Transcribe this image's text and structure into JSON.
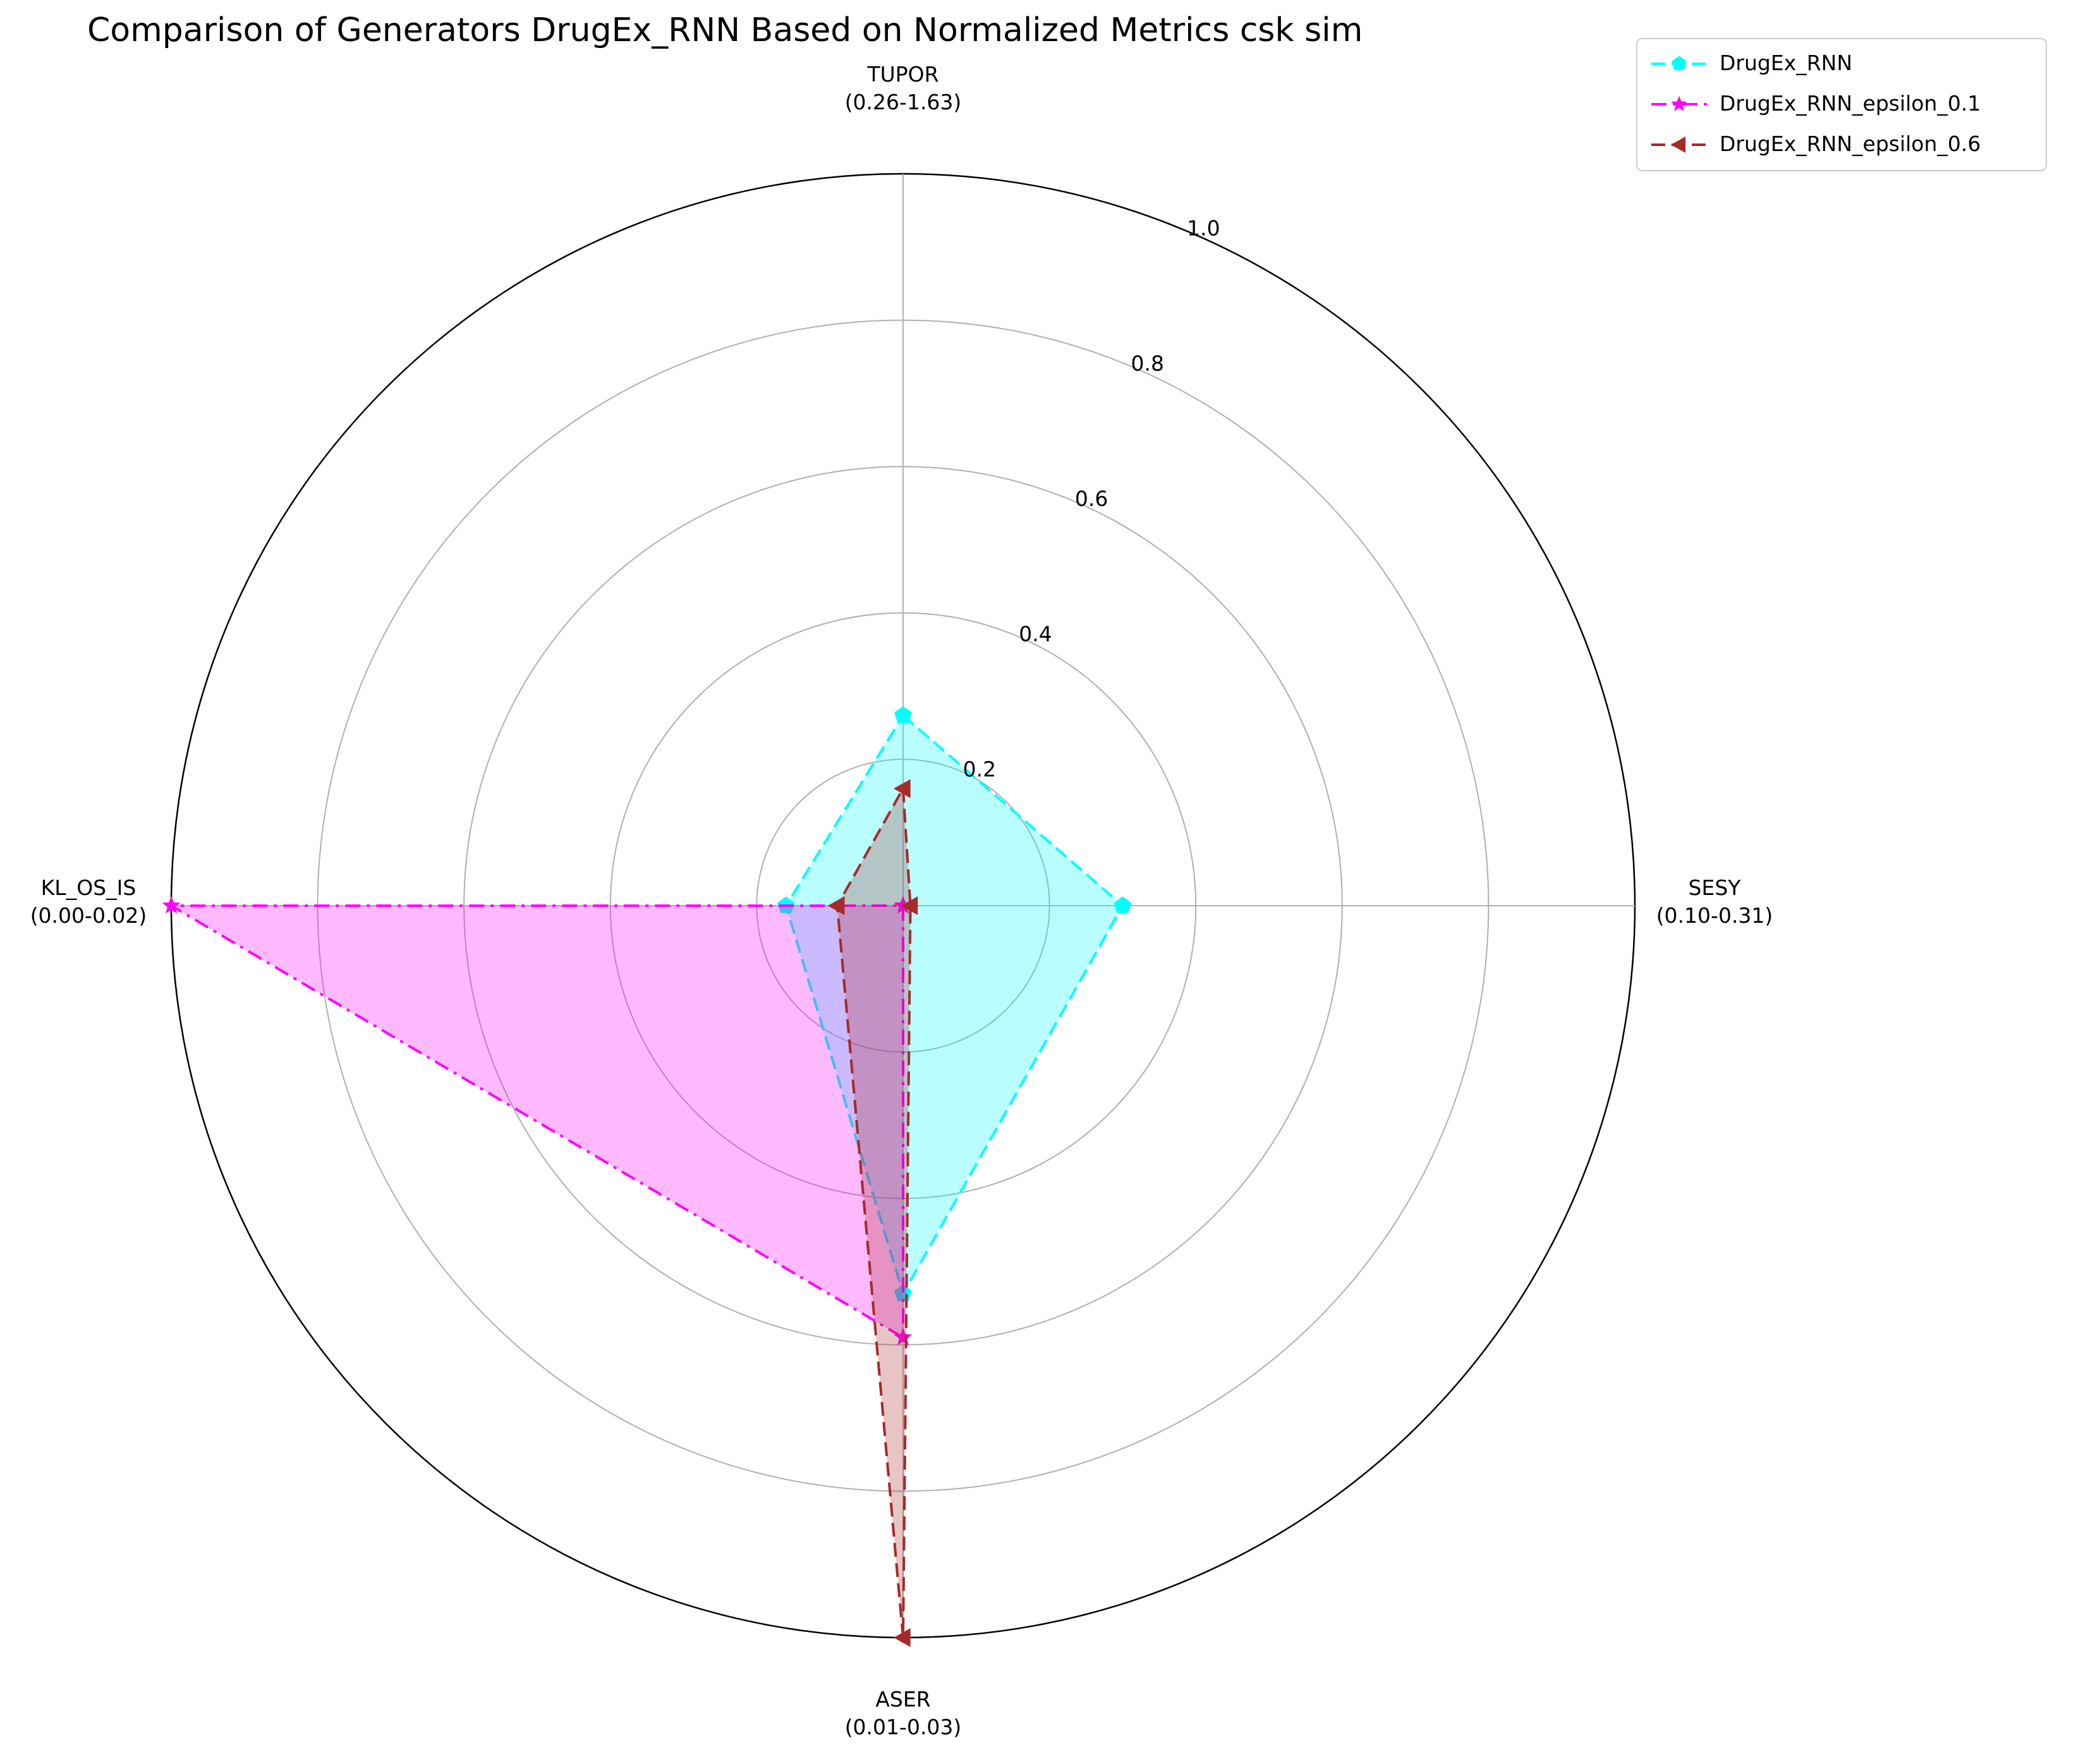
{
  "chart_data": {
    "type": "radar",
    "title": "Comparison of Generators DrugEx_RNN Based on Normalized Metrics csk sim",
    "axes": [
      {
        "name": "TUPOR",
        "range": "(0.26-1.63)"
      },
      {
        "name": "SESY",
        "range": "(0.10-0.31)"
      },
      {
        "name": "ASER",
        "range": "(0.01-0.03)"
      },
      {
        "name": "KL_OS_IS",
        "range": "(0.00-0.02)"
      }
    ],
    "radial_ticks": [
      "0.2",
      "0.4",
      "0.6",
      "0.8",
      "1.0"
    ],
    "radial_range": [
      0,
      1.0
    ],
    "grid": true,
    "legend_position": "top-right",
    "series": [
      {
        "name": "DrugEx_RNN",
        "values": [
          0.26,
          0.3,
          0.53,
          0.16
        ],
        "color": "#00ffff",
        "line_style": "dashed",
        "marker": "pentagon"
      },
      {
        "name": "DrugEx_RNN_epsilon_0.1",
        "values": [
          0.0,
          0.0,
          0.59,
          1.0
        ],
        "color": "#ff00ff",
        "line_style": "dashdot",
        "marker": "star"
      },
      {
        "name": "DrugEx_RNN_epsilon_0.6",
        "values": [
          0.16,
          0.01,
          1.0,
          0.09
        ],
        "color": "#a52a2a",
        "line_style": "dashed",
        "marker": "triangle-left"
      }
    ]
  }
}
